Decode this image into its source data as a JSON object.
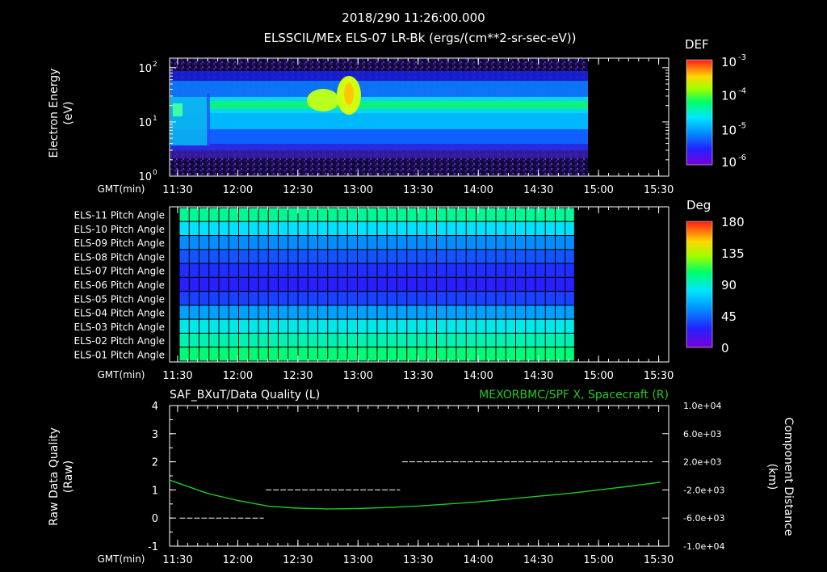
{
  "header": {
    "timestamp": "2018/290 11:26:00.000",
    "title": "ELSSCIL/MEx ELS-07 LR-Bk  (ergs/(cm**2-sr-sec-eV))"
  },
  "chart_data": [
    {
      "type": "heatmap",
      "name": "energy-spectrogram",
      "ylabel": "Electron Energy",
      "yunits": "(eV)",
      "yscale": "log",
      "ylim": [
        1,
        150
      ],
      "ytick_labels": [
        "10",
        "10",
        "10"
      ],
      "ytick_exponents": [
        "0",
        "1",
        "2"
      ],
      "xlabel": "GMT(min)",
      "xtick_labels": [
        "11:30",
        "12:00",
        "12:30",
        "13:00",
        "13:30",
        "14:00",
        "14:30",
        "15:00",
        "15:30"
      ],
      "data_coverage": [
        "11:26",
        "14:48"
      ],
      "colorbar": {
        "label": "DEF",
        "scale": "log",
        "range": [
          1e-06,
          0.001
        ],
        "tick_bases": [
          "10",
          "10",
          "10",
          "10"
        ],
        "tick_exponents": [
          "-3",
          "-4",
          "-5",
          "-6"
        ]
      }
    },
    {
      "type": "heatmap",
      "name": "pitch-angle-panel",
      "rows": [
        "ELS-11 Pitch Angle",
        "ELS-10 Pitch Angle",
        "ELS-09 Pitch Angle",
        "ELS-08 Pitch Angle",
        "ELS-07 Pitch Angle",
        "ELS-06 Pitch Angle",
        "ELS-05 Pitch Angle",
        "ELS-04 Pitch Angle",
        "ELS-03 Pitch Angle",
        "ELS-02 Pitch Angle",
        "ELS-01 Pitch Angle"
      ],
      "row_values_deg": [
        100,
        80,
        55,
        40,
        30,
        25,
        35,
        60,
        85,
        95,
        105
      ],
      "xlabel": "GMT(min)",
      "xtick_labels": [
        "11:30",
        "12:00",
        "12:30",
        "13:00",
        "13:30",
        "14:00",
        "14:30",
        "15:00",
        "15:30"
      ],
      "data_coverage": [
        "11:26",
        "14:48"
      ],
      "colorbar": {
        "label": "Deg",
        "range": [
          0,
          180
        ],
        "tick_labels": [
          "180",
          "135",
          "90",
          "45",
          "0"
        ]
      }
    },
    {
      "type": "line",
      "name": "data-quality-panel",
      "left_title": "SAF_BXuT/Data Quality (L)",
      "right_title": "MEXORBMC/SPF X, Spacecraft (R)",
      "left_ylabel": "Raw Data Quality",
      "left_yunits": "(Raw)",
      "left_ylim": [
        -1,
        4
      ],
      "left_ytick_labels": [
        "4",
        "3",
        "2",
        "1",
        "0",
        "-1"
      ],
      "right_ylabel": "Component Distance",
      "right_yunits": "(km)",
      "right_ylim": [
        -10000,
        10000
      ],
      "right_ytick_labels": [
        "1.0e+04",
        "6.0e+03",
        "2.0e+03",
        "-2.0e+03",
        "-6.0e+03",
        "-1.0e+04"
      ],
      "xlabel": "GMT(min)",
      "xtick_labels": [
        "11:30",
        "12:00",
        "12:30",
        "13:00",
        "13:30",
        "14:00",
        "14:30",
        "15:00",
        "15:30"
      ],
      "series": [
        {
          "name": "Data Quality",
          "axis": "left",
          "color": "#ffffff",
          "style": "segments",
          "segments": [
            {
              "start": "11:31",
              "end": "12:13",
              "value": 0
            },
            {
              "start": "12:14",
              "end": "13:21",
              "value": 1
            },
            {
              "start": "13:22",
              "end": "15:27",
              "value": 2
            }
          ]
        },
        {
          "name": "SPF X, Spacecraft",
          "axis": "right",
          "color": "#22c922",
          "x": [
            "11:26",
            "11:45",
            "12:00",
            "12:15",
            "12:30",
            "12:45",
            "13:00",
            "13:15",
            "13:30",
            "13:45",
            "14:00",
            "14:15",
            "14:30",
            "14:45",
            "15:00",
            "15:15",
            "15:31"
          ],
          "values": [
            -600,
            -2500,
            -3500,
            -4300,
            -4600,
            -4700,
            -4650,
            -4500,
            -4300,
            -4000,
            -3700,
            -3300,
            -2900,
            -2500,
            -2000,
            -1500,
            -900
          ]
        }
      ]
    }
  ]
}
